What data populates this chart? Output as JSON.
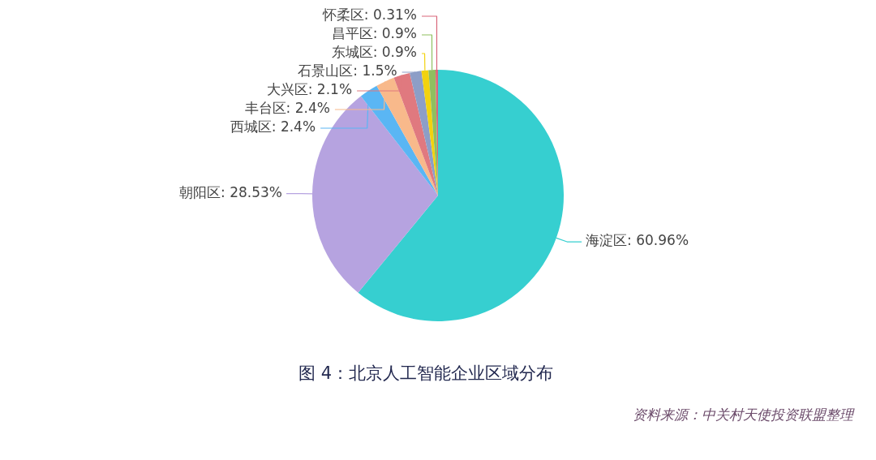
{
  "chart_data": {
    "type": "pie",
    "title": "图 4：北京人工智能企业区域分布",
    "categories": [
      "海淀区",
      "朝阳区",
      "西城区",
      "丰台区",
      "大兴区",
      "石景山区",
      "东城区",
      "昌平区",
      "怀柔区"
    ],
    "values": [
      60.96,
      28.53,
      2.4,
      2.4,
      2.1,
      1.5,
      0.9,
      0.9,
      0.31
    ],
    "value_labels": [
      "60.96%",
      "28.53%",
      "2.4%",
      "2.4%",
      "2.1%",
      "1.5%",
      "0.9%",
      "0.9%",
      "0.31%"
    ],
    "colors": [
      "#36cfd0",
      "#b6a3e0",
      "#5ab6f4",
      "#f8b98b",
      "#e0797f",
      "#8d9ec7",
      "#f2d20f",
      "#8fbf5f",
      "#d9667a"
    ],
    "legend": false,
    "annotations": [
      "资料来源：中关村天使投资联盟整理"
    ]
  }
}
